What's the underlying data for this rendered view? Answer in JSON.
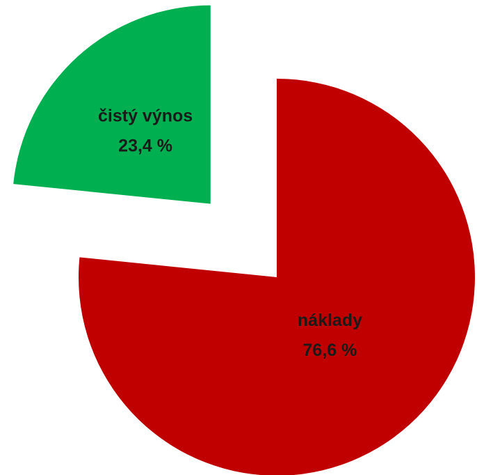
{
  "chart_data": {
    "type": "pie",
    "categories": [
      "náklady",
      "čistý výnos"
    ],
    "values": [
      76.6,
      23.4
    ],
    "value_labels": [
      "76,6 %",
      "23,4 %"
    ],
    "colors": [
      "#c00000",
      "#00b050"
    ]
  }
}
